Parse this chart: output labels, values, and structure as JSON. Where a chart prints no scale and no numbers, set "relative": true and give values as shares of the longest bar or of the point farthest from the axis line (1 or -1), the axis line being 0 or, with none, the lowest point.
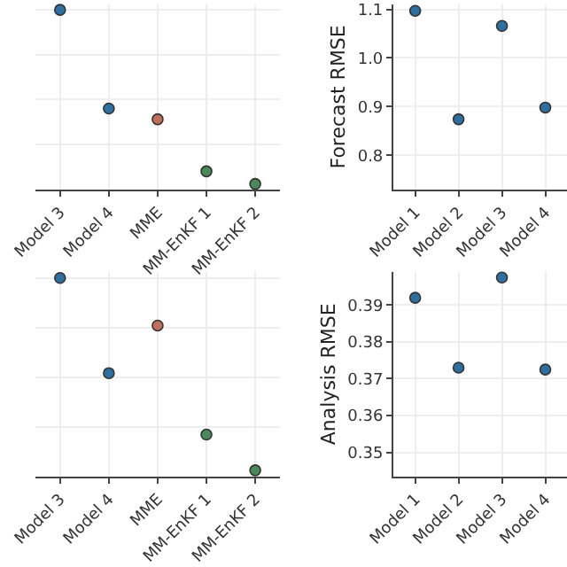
{
  "chart_data": [
    {
      "type": "scatter",
      "relative": true,
      "tick_labels": "x",
      "grid": true,
      "categories": [
        "Model 3",
        "Model 4",
        "MME",
        "MM-EnKF 1",
        "MM-EnKF 2"
      ],
      "series": [
        {
          "values": [
            1,
            0.45,
            0.39,
            0.1,
            0.03
          ],
          "colors": [
            "#2f6f9f",
            "#2f6f9f",
            "#c0705a",
            "#4a8a5a",
            "#4a8a5a"
          ]
        }
      ]
    },
    {
      "type": "scatter",
      "ylabel": "Forecast RMSE",
      "grid": true,
      "categories": [
        "Model 1",
        "Model 2",
        "Model 3",
        "Model 4"
      ],
      "ylim": [
        0.73,
        1.11
      ],
      "yticks": [
        0.8,
        0.9,
        {
          "value": 1,
          "label": "1.0"
        },
        1.1
      ],
      "series": [
        {
          "values": [
            1.097,
            0.874,
            1.066,
            0.898
          ],
          "color": "#2f6f9f"
        }
      ]
    },
    {
      "type": "scatter",
      "relative": true,
      "tick_labels": "x",
      "grid": true,
      "categories": [
        "Model 3",
        "Model 4",
        "MME",
        "MM-EnKF 1",
        "MM-EnKF 2"
      ],
      "series": [
        {
          "values": [
            1,
            0.52,
            0.76,
            0.21,
            0.03
          ],
          "colors": [
            "#2f6f9f",
            "#2f6f9f",
            "#c0705a",
            "#4a8a5a",
            "#4a8a5a"
          ]
        }
      ]
    },
    {
      "type": "scatter",
      "ylabel": "Analysis RMSE",
      "grid": true,
      "categories": [
        "Model 1",
        "Model 2",
        "Model 3",
        "Model 4"
      ],
      "ylim": [
        0.3435,
        0.399
      ],
      "yticks": [
        0.35,
        0.36,
        0.37,
        0.38,
        0.39
      ],
      "series": [
        {
          "values": [
            0.392,
            0.373,
            0.3975,
            0.3725
          ],
          "color": "#2f6f9f"
        }
      ]
    }
  ]
}
